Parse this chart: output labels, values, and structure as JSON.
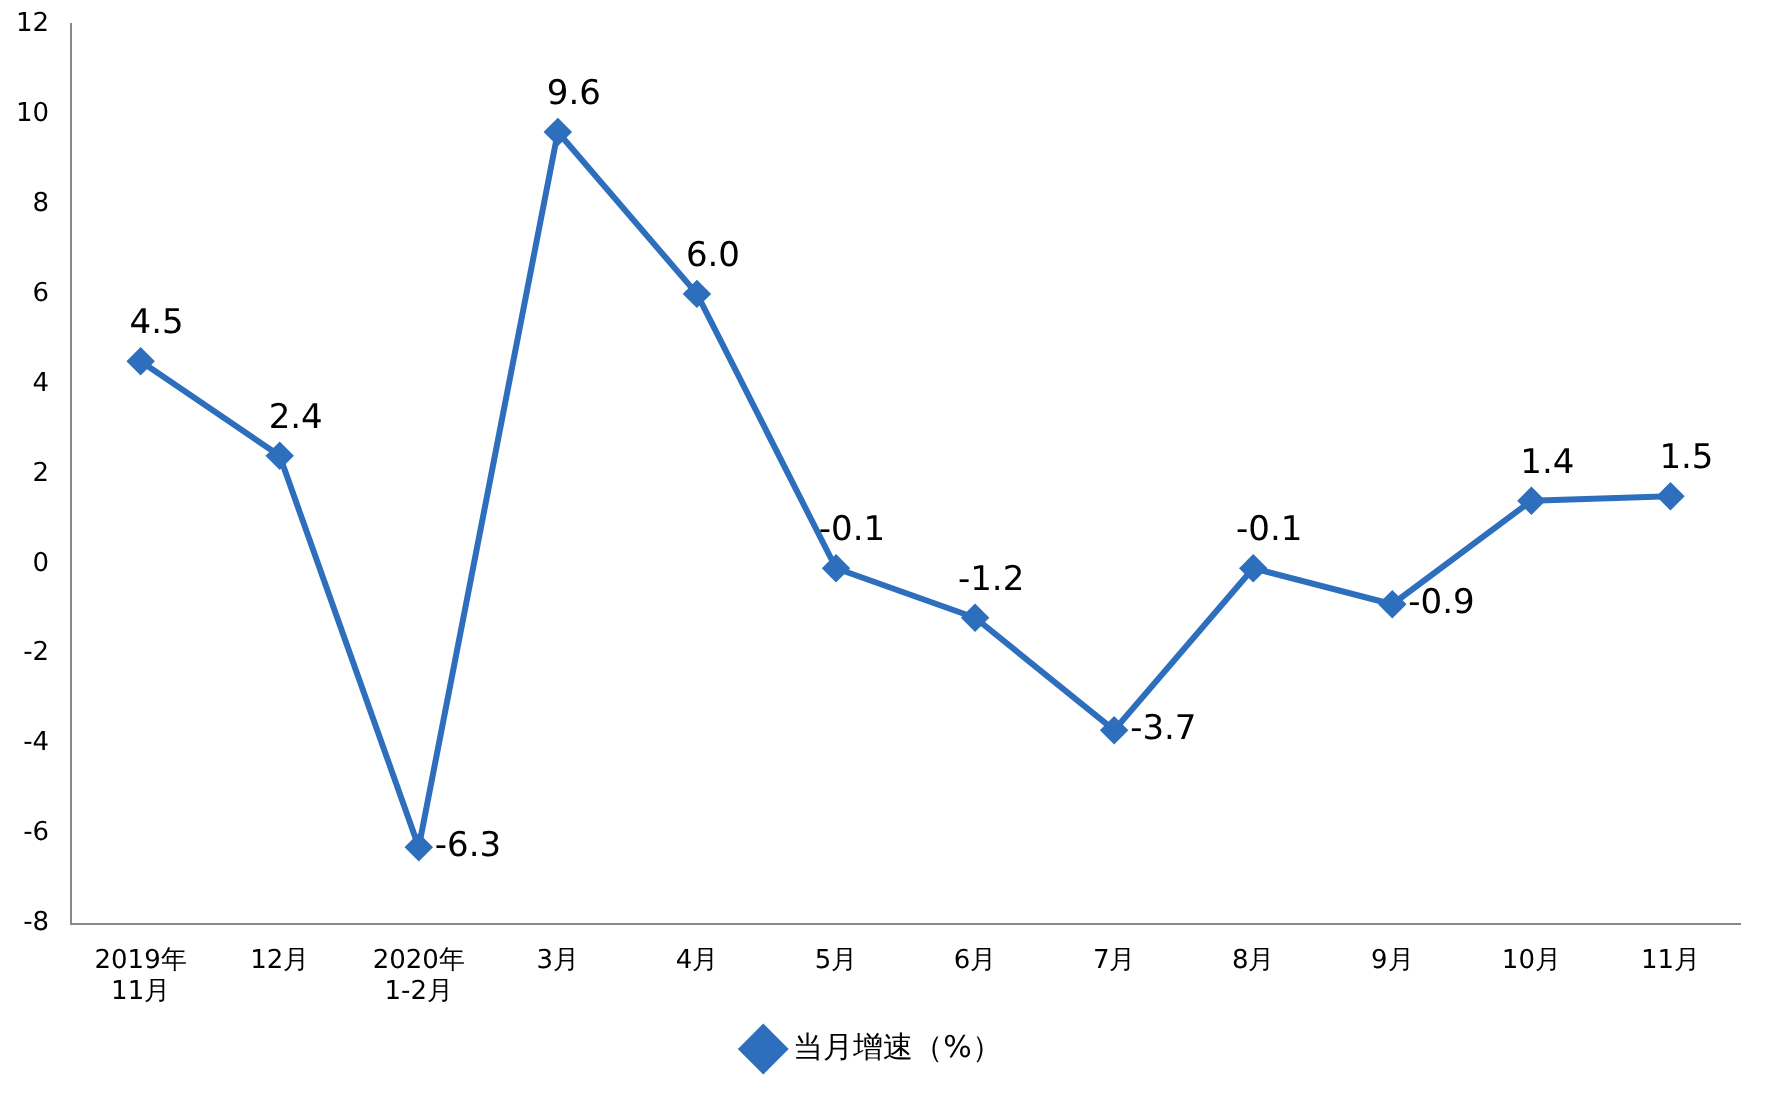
{
  "chart_data": {
    "type": "line",
    "categories": [
      "2019年\n11月",
      "12月",
      "2020年\n1-2月",
      "3月",
      "4月",
      "5月",
      "6月",
      "7月",
      "8月",
      "9月",
      "10月",
      "11月"
    ],
    "series": [
      {
        "name": "当月增速（%）",
        "color": "#2e6fbd",
        "values": [
          4.5,
          2.4,
          -6.3,
          9.6,
          6.0,
          -0.1,
          -1.2,
          -3.7,
          -0.1,
          -0.9,
          1.4,
          1.5
        ],
        "value_labels": [
          "4.5",
          "2.4",
          "-6.3",
          "9.6",
          "6.0",
          "-0.1",
          "-1.2",
          "-3.7",
          "-0.1",
          "-0.9",
          "1.4",
          "1.5"
        ]
      }
    ],
    "ylim": [
      -8,
      12
    ],
    "yticks": [
      -8,
      -6,
      -4,
      -2,
      0,
      2,
      4,
      6,
      8,
      10,
      12
    ],
    "grid": false,
    "legend": "bottom",
    "marker": "diamond",
    "line_style": "solid"
  }
}
